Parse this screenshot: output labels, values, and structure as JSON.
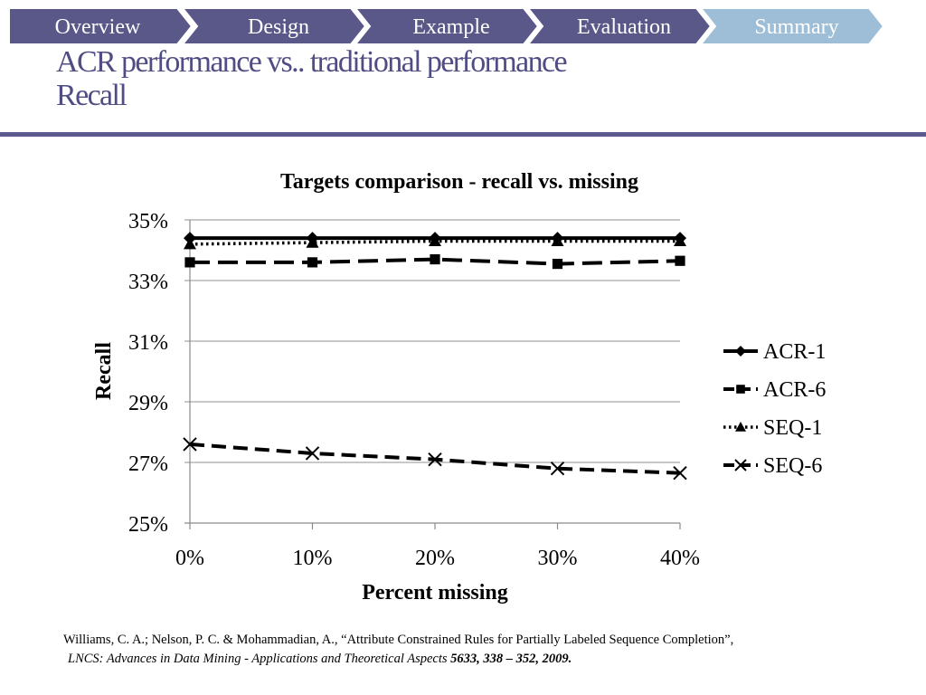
{
  "nav": {
    "tabs": [
      {
        "label": "Overview",
        "active": false
      },
      {
        "label": "Design",
        "active": false
      },
      {
        "label": "Example",
        "active": false
      },
      {
        "label": "Evaluation",
        "active": false
      },
      {
        "label": "Summary",
        "active": true
      }
    ],
    "colors": {
      "tab": "#5a5888",
      "active_tab": "#9dbed6",
      "text": "#ffffff"
    }
  },
  "slide": {
    "title_line1": "ACR performance vs.. traditional performance",
    "title_line2": "Recall"
  },
  "chart_data": {
    "type": "line",
    "title": "Targets comparison - recall vs. missing",
    "xlabel": "Percent missing",
    "ylabel": "Recall",
    "categories": [
      "0%",
      "10%",
      "20%",
      "30%",
      "40%"
    ],
    "ylim": [
      25,
      35
    ],
    "yticks": [
      "25%",
      "27%",
      "29%",
      "31%",
      "33%",
      "35%"
    ],
    "grid": true,
    "legend": "right",
    "series": [
      {
        "name": "ACR-1",
        "marker": "diamond",
        "dash": "solid",
        "values": [
          34.4,
          34.4,
          34.4,
          34.4,
          34.4
        ]
      },
      {
        "name": "ACR-6",
        "marker": "square",
        "dash": "long-dash",
        "values": [
          33.6,
          33.6,
          33.7,
          33.55,
          33.65
        ]
      },
      {
        "name": "SEQ-1",
        "marker": "triangle",
        "dash": "dotted",
        "values": [
          34.2,
          34.25,
          34.3,
          34.3,
          34.3
        ]
      },
      {
        "name": "SEQ-6",
        "marker": "x",
        "dash": "dashed",
        "values": [
          27.6,
          27.3,
          27.1,
          26.8,
          26.65
        ]
      }
    ]
  },
  "citation": {
    "line1": "Williams, C. A.; Nelson, P. C. & Mohammadian, A., “Attribute Constrained Rules for Partially Labeled Sequence Completion”,",
    "line2_italic": "LNCS: Advances in Data Mining - Applications and Theoretical Aspects ",
    "line2_bold": "5633, 338 – 352, 2009."
  }
}
